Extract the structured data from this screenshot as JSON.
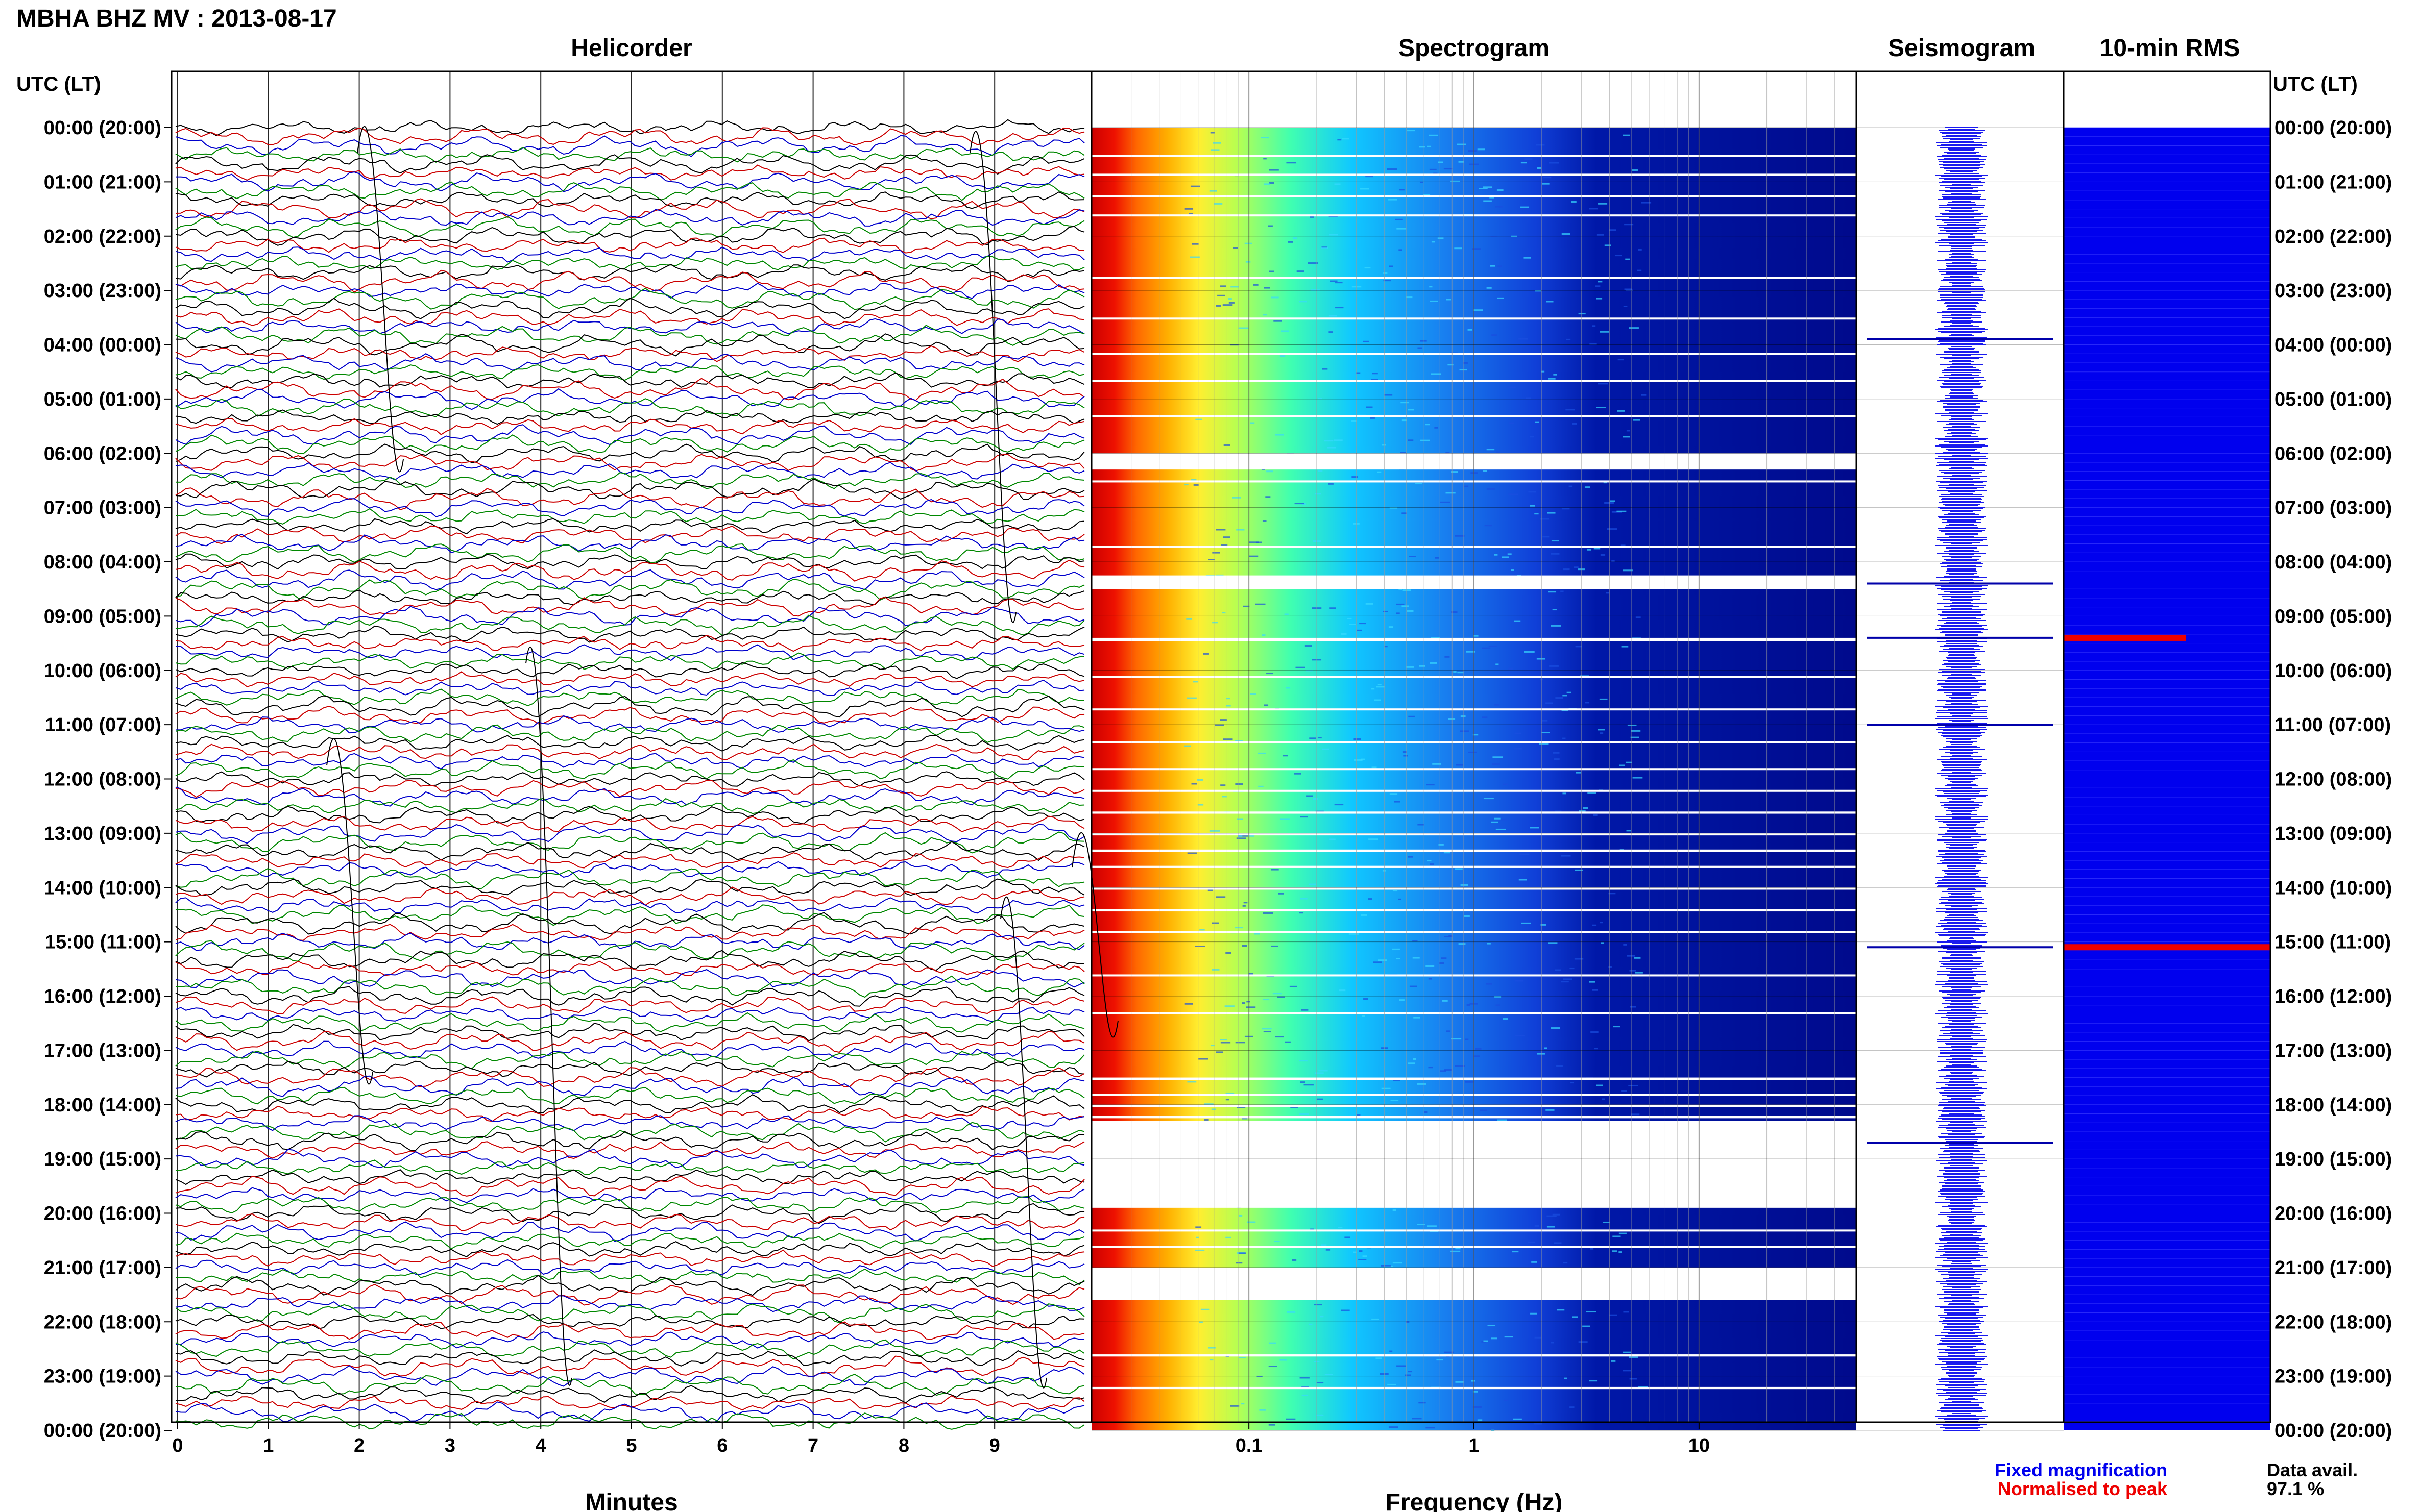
{
  "header": {
    "station_title": "MBHA BHZ MV : 2013-08-17",
    "left_axis_title": "UTC (LT)",
    "right_axis_title": "UTC (LT)"
  },
  "panels": {
    "helicorder": {
      "title": "Helicorder",
      "xlabel": "Minutes"
    },
    "spectrogram": {
      "title": "Spectrogram",
      "xlabel": "Frequency (Hz)"
    },
    "seismogram": {
      "title": "Seismogram"
    },
    "rms": {
      "title": "10-min RMS"
    }
  },
  "legend": {
    "fixed": "Fixed magnification",
    "normalised": "Normalised to peak",
    "fixed_color": "#0000ee",
    "normalised_color": "#ee0000"
  },
  "availability": {
    "label": "Data avail.",
    "value": "97.1 %"
  },
  "chart_data": {
    "type": "helicorder",
    "hour_labels": [
      "00:00 (20:00)",
      "01:00 (21:00)",
      "02:00 (22:00)",
      "03:00 (23:00)",
      "04:00 (00:00)",
      "05:00 (01:00)",
      "06:00 (02:00)",
      "07:00 (03:00)",
      "08:00 (04:00)",
      "09:00 (05:00)",
      "10:00 (06:00)",
      "11:00 (07:00)",
      "12:00 (08:00)",
      "13:00 (09:00)",
      "14:00 (10:00)",
      "15:00 (11:00)",
      "16:00 (12:00)",
      "17:00 (13:00)",
      "18:00 (14:00)",
      "19:00 (15:00)",
      "20:00 (16:00)",
      "21:00 (17:00)",
      "22:00 (18:00)",
      "23:00 (19:00)",
      "00:00 (20:00)"
    ],
    "helicorder_xticks": [
      0,
      1,
      2,
      3,
      4,
      5,
      6,
      7,
      8,
      9
    ],
    "helicorder_xlim": [
      0,
      10
    ],
    "helicorder_trace_colors": [
      "#000000",
      "#cc0000",
      "#0000cc",
      "#008800"
    ],
    "spectrogram_xticks": [
      "0.1",
      "1",
      "10"
    ],
    "spectrogram_xlim_hz": [
      0.02,
      50
    ],
    "spectrogram_gaps_hours": [
      [
        0.5,
        0.52
      ],
      [
        0.85,
        0.87
      ],
      [
        1.25,
        1.27
      ],
      [
        1.6,
        1.62
      ],
      [
        2.75,
        2.78
      ],
      [
        3.5,
        3.52
      ],
      [
        4.15,
        4.18
      ],
      [
        4.65,
        4.68
      ],
      [
        5.3,
        5.33
      ],
      [
        6.0,
        6.3
      ],
      [
        6.5,
        6.52
      ],
      [
        7.7,
        7.72
      ],
      [
        8.25,
        8.5
      ],
      [
        9.4,
        9.46
      ],
      [
        10.1,
        10.13
      ],
      [
        10.7,
        10.72
      ],
      [
        11.3,
        11.33
      ],
      [
        11.8,
        11.83
      ],
      [
        12.2,
        12.23
      ],
      [
        12.6,
        12.64
      ],
      [
        13.0,
        13.04
      ],
      [
        13.3,
        13.34
      ],
      [
        13.6,
        13.64
      ],
      [
        14.0,
        14.04
      ],
      [
        14.4,
        14.44
      ],
      [
        14.8,
        14.84
      ],
      [
        15.6,
        15.63
      ],
      [
        16.3,
        16.33
      ],
      [
        17.5,
        17.55
      ],
      [
        17.8,
        17.84
      ],
      [
        18.0,
        18.04
      ],
      [
        18.2,
        18.25
      ],
      [
        18.3,
        19.9
      ],
      [
        20.3,
        20.33
      ],
      [
        20.6,
        20.64
      ],
      [
        21.0,
        21.6
      ],
      [
        22.6,
        22.64
      ],
      [
        23.2,
        23.24
      ]
    ],
    "seismogram_spikes_hours": [
      3.9,
      8.4,
      9.4,
      11.0,
      15.1,
      18.7
    ],
    "rms_highlights_hours": [
      9.4,
      15.1
    ],
    "rms_colors": {
      "fixed": "#0000ee",
      "normalised": "#ee0000"
    }
  }
}
